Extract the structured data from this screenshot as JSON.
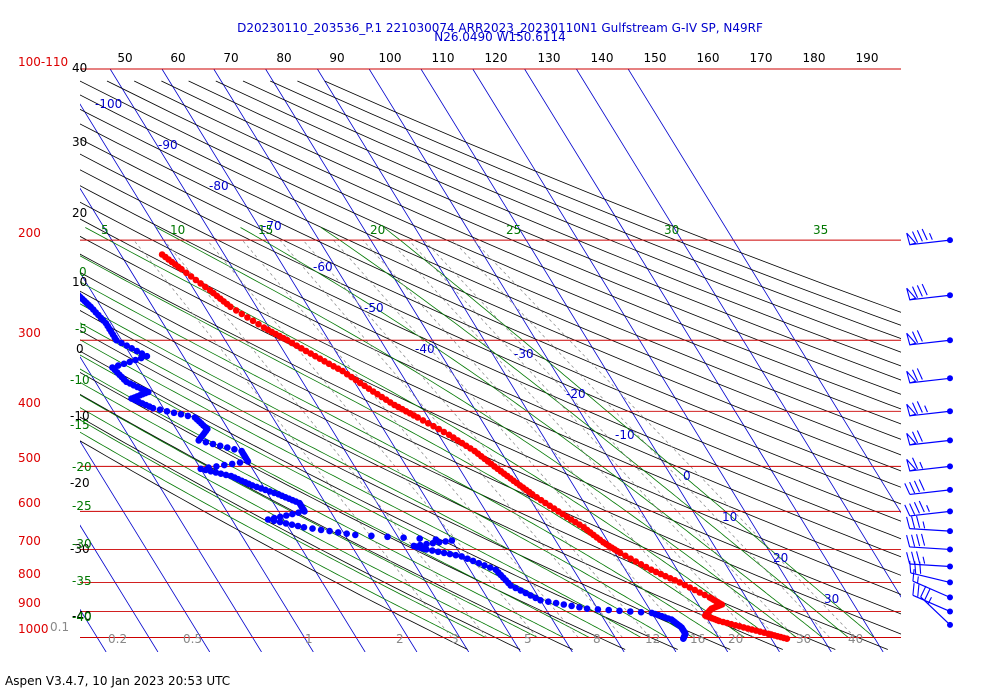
{
  "header": {
    "line1": "D20230110_203536_P.1 221030074 ARR2023_20230110N1 Gulfstream G-IV SP, N49RF",
    "line2": "N26.0490 W150.6114"
  },
  "footer": "Aspen V3.4.7, 10 Jan 2023  20:53 UTC",
  "colors": {
    "temperature": "#ff0000",
    "dewpoint": "#0000ff",
    "isobar": "#cc0000",
    "isotherm": "#0000cc",
    "dry_adiabat": "#000000",
    "moist_adiabat": "#007700",
    "mixing_ratio": "#888888"
  },
  "chart_data": {
    "type": "line",
    "skew_t": true,
    "pressure_axis": {
      "scale": "log",
      "range_hpa": [
        1000,
        100
      ],
      "tick_labels": [
        "100-110",
        "200",
        "300",
        "400",
        "500",
        "600",
        "700",
        "800",
        "900",
        "1000"
      ],
      "lines_hpa": [
        100,
        200,
        300,
        400,
        500,
        600,
        700,
        800,
        900,
        1000
      ]
    },
    "top_scale_labels": [
      "50",
      "60",
      "70",
      "80",
      "90",
      "100",
      "110",
      "120",
      "130",
      "140",
      "150",
      "160",
      "170",
      "180",
      "190"
    ],
    "left_scale_labels": [
      "40",
      "30",
      "20",
      "10",
      "0",
      "-10",
      "-20",
      "-30",
      "-40"
    ],
    "isotherm_labels": [
      "-100",
      "-90",
      "-80",
      "-70",
      "-60",
      "-50",
      "-40",
      "-30",
      "-20",
      "-10",
      "0",
      "10",
      "20",
      "30"
    ],
    "moist_adiabat_labels": [
      "5",
      "10",
      "15",
      "20",
      "25",
      "30",
      "35",
      "0",
      "-5",
      "-10",
      "-15",
      "-20",
      "-25",
      "-30",
      "-35",
      "-40"
    ],
    "mixing_ratio_labels": [
      "0.1",
      "0.2",
      "0.5",
      "1",
      "2",
      "3",
      "5",
      "8",
      "12",
      "16",
      "20",
      "30",
      "40"
    ],
    "series": [
      {
        "name": "",
        "kind": "temperature",
        "points": [
          {
            "p": 212,
            "t": -52
          },
          {
            "p": 225,
            "t": -50
          },
          {
            "p": 245,
            "t": -47
          },
          {
            "p": 262,
            "t": -45
          },
          {
            "p": 285,
            "t": -41
          },
          {
            "p": 300,
            "t": -38
          },
          {
            "p": 320,
            "t": -34.5
          },
          {
            "p": 340,
            "t": -31
          },
          {
            "p": 365,
            "t": -28
          },
          {
            "p": 390,
            "t": -25
          },
          {
            "p": 410,
            "t": -22
          },
          {
            "p": 440,
            "t": -18
          },
          {
            "p": 470,
            "t": -15
          },
          {
            "p": 500,
            "t": -13
          },
          {
            "p": 530,
            "t": -11
          },
          {
            "p": 560,
            "t": -9
          },
          {
            "p": 600,
            "t": -6
          },
          {
            "p": 640,
            "t": -3
          },
          {
            "p": 680,
            "t": -1
          },
          {
            "p": 710,
            "t": 1
          },
          {
            "p": 760,
            "t": 5
          },
          {
            "p": 800,
            "t": 9
          },
          {
            "p": 850,
            "t": 13
          },
          {
            "p": 875,
            "t": 14.5
          },
          {
            "p": 890,
            "t": 12
          },
          {
            "p": 915,
            "t": 10
          },
          {
            "p": 935,
            "t": 12
          },
          {
            "p": 960,
            "t": 16
          },
          {
            "p": 985,
            "t": 20
          },
          {
            "p": 1005,
            "t": 23
          }
        ]
      },
      {
        "name": "",
        "kind": "dewpoint",
        "points": [
          {
            "p": 250,
            "t": -73
          },
          {
            "p": 262,
            "t": -72
          },
          {
            "p": 280,
            "t": -71
          },
          {
            "p": 300,
            "t": -71
          },
          {
            "p": 320,
            "t": -67
          },
          {
            "p": 335,
            "t": -75
          },
          {
            "p": 355,
            "t": -74
          },
          {
            "p": 370,
            "t": -71
          },
          {
            "p": 380,
            "t": -75
          },
          {
            "p": 395,
            "t": -72
          },
          {
            "p": 410,
            "t": -65
          },
          {
            "p": 430,
            "t": -64
          },
          {
            "p": 450,
            "t": -67
          },
          {
            "p": 470,
            "t": -60
          },
          {
            "p": 490,
            "t": -60
          },
          {
            "p": 505,
            "t": -70
          },
          {
            "p": 520,
            "t": -65
          },
          {
            "p": 540,
            "t": -62
          },
          {
            "p": 560,
            "t": -58
          },
          {
            "p": 580,
            "t": -55
          },
          {
            "p": 600,
            "t": -55
          },
          {
            "p": 620,
            "t": -63
          },
          {
            "p": 640,
            "t": -57
          },
          {
            "p": 660,
            "t": -48
          },
          {
            "p": 675,
            "t": -30
          },
          {
            "p": 690,
            "t": -38
          },
          {
            "p": 700,
            "t": -36
          },
          {
            "p": 720,
            "t": -30
          },
          {
            "p": 760,
            "t": -25
          },
          {
            "p": 810,
            "t": -24
          },
          {
            "p": 860,
            "t": -20
          },
          {
            "p": 890,
            "t": -12
          },
          {
            "p": 905,
            "t": 0
          },
          {
            "p": 930,
            "t": 3
          },
          {
            "p": 960,
            "t": 4
          },
          {
            "p": 985,
            "t": 4
          },
          {
            "p": 1005,
            "t": 3
          }
        ]
      }
    ],
    "wind_barbs": [
      {
        "p": 200,
        "speed_kt": 85,
        "dir_deg": 270
      },
      {
        "p": 250,
        "speed_kt": 80,
        "dir_deg": 270
      },
      {
        "p": 300,
        "speed_kt": 70,
        "dir_deg": 270
      },
      {
        "p": 350,
        "speed_kt": 70,
        "dir_deg": 270
      },
      {
        "p": 400,
        "speed_kt": 75,
        "dir_deg": 270
      },
      {
        "p": 450,
        "speed_kt": 70,
        "dir_deg": 270
      },
      {
        "p": 500,
        "speed_kt": 65,
        "dir_deg": 270
      },
      {
        "p": 550,
        "speed_kt": 40,
        "dir_deg": 270
      },
      {
        "p": 600,
        "speed_kt": 45,
        "dir_deg": 270
      },
      {
        "p": 650,
        "speed_kt": 35,
        "dir_deg": 280
      },
      {
        "p": 700,
        "speed_kt": 40,
        "dir_deg": 280
      },
      {
        "p": 750,
        "speed_kt": 35,
        "dir_deg": 280
      },
      {
        "p": 800,
        "speed_kt": 30,
        "dir_deg": 290
      },
      {
        "p": 850,
        "speed_kt": 15,
        "dir_deg": 300
      },
      {
        "p": 900,
        "speed_kt": 20,
        "dir_deg": 300
      },
      {
        "p": 950,
        "speed_kt": 25,
        "dir_deg": 320
      }
    ]
  }
}
